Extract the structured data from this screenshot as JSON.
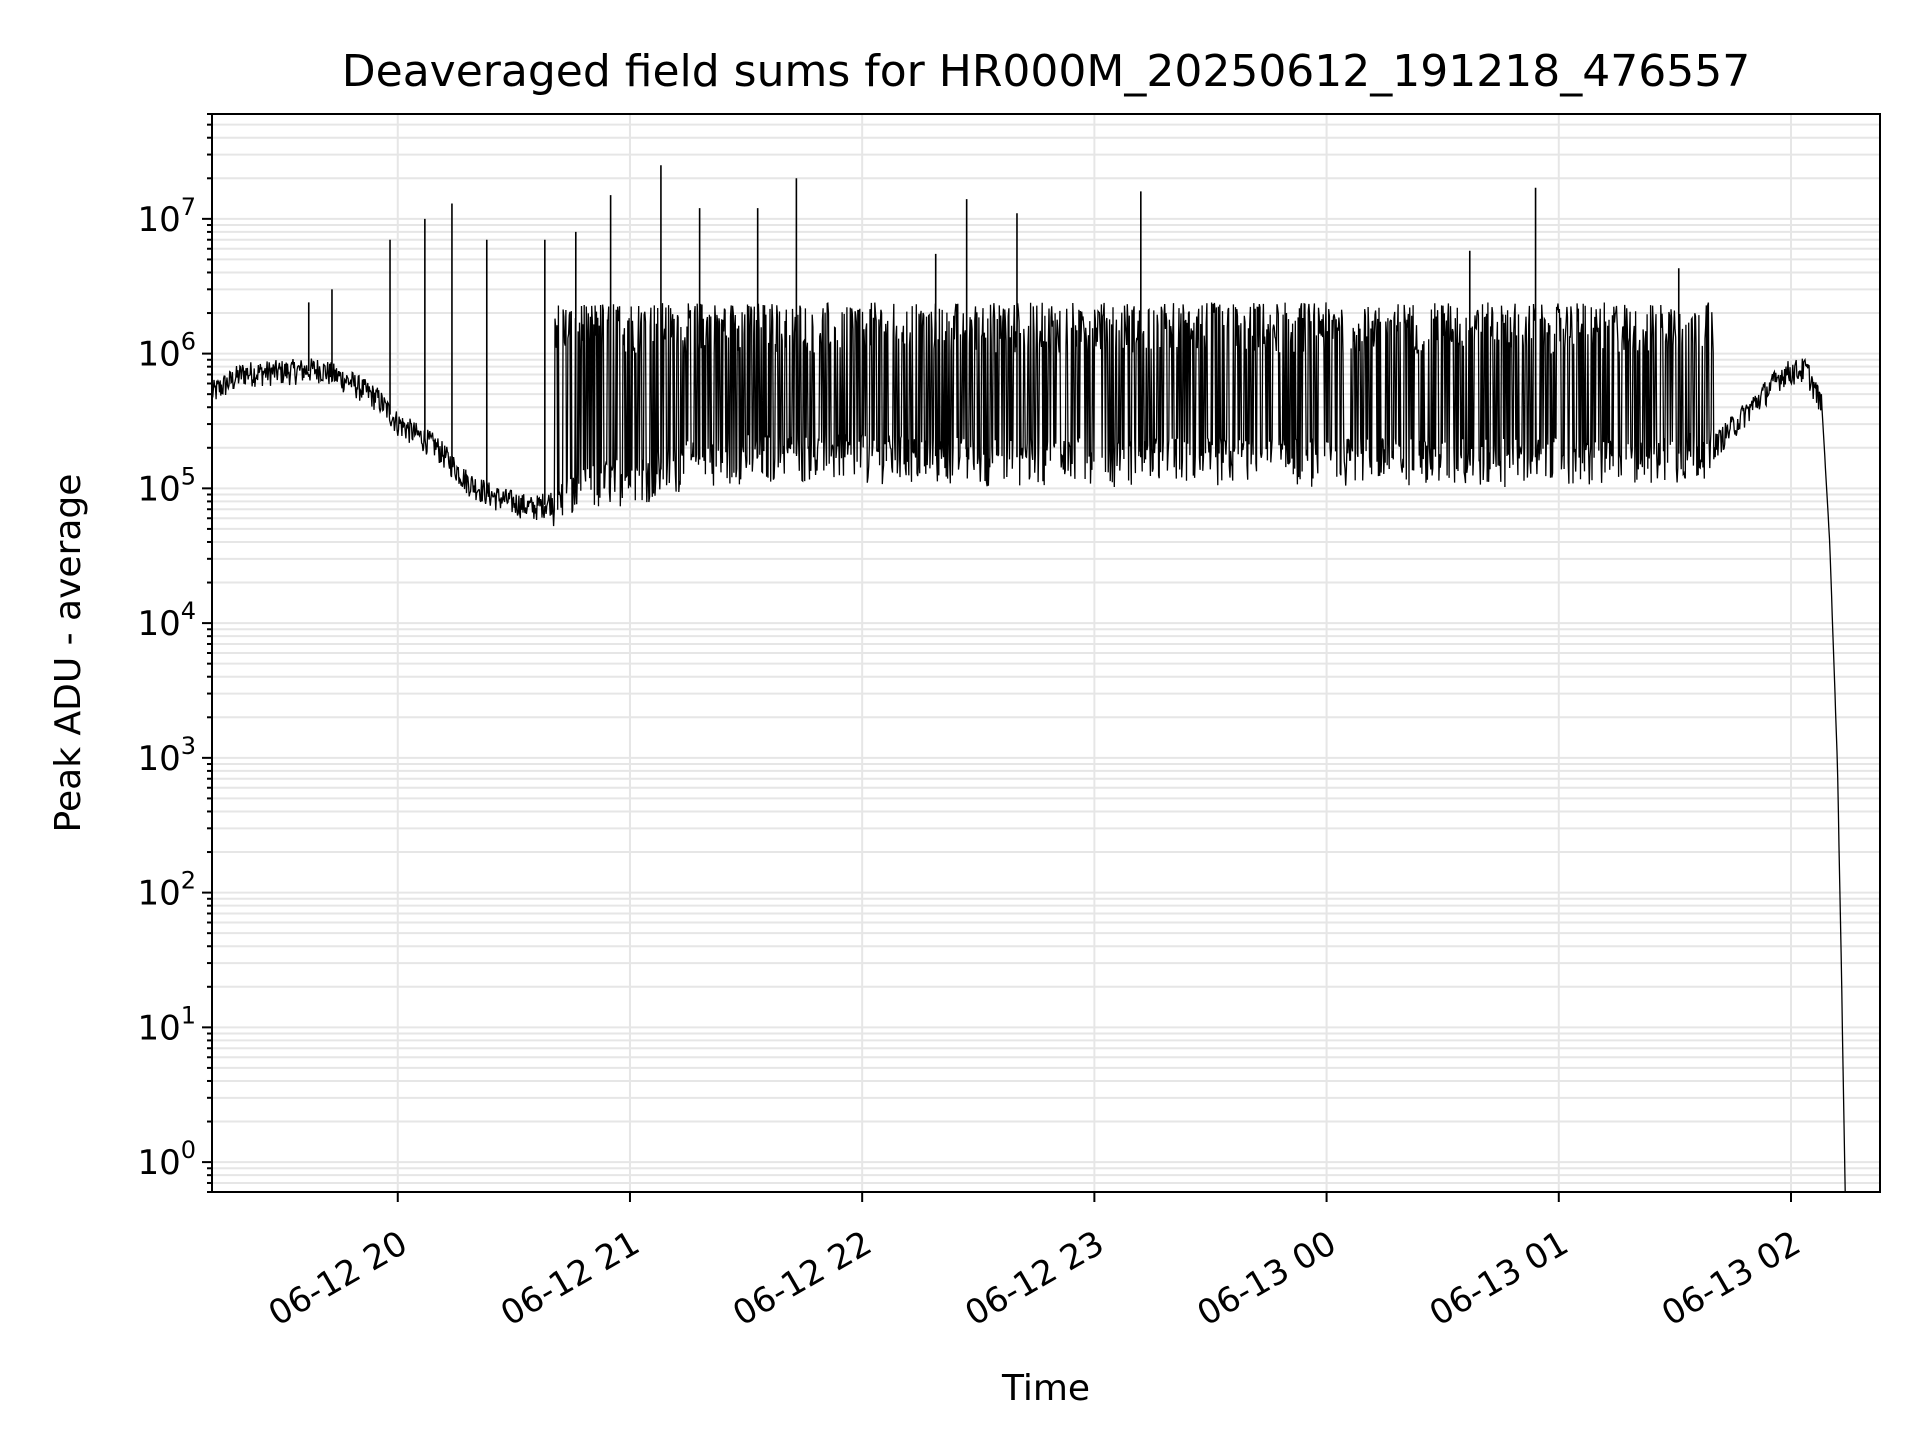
{
  "chart_data": {
    "type": "line",
    "title": "Deaveraged field sums for HR000M_20250612_191218_476557",
    "xlabel": "Time",
    "ylabel": "Peak ADU - average",
    "yscale": "log",
    "ylim": [
      0.6,
      60000000
    ],
    "xlim": [
      "2025-06-12 19:12",
      "2025-06-13 02:23"
    ],
    "grid": true,
    "line_color": "#000000",
    "grid_color": "#e6e6e6",
    "x_ticks": [
      {
        "t": "2025-06-12 20:00",
        "label": "06-12 20"
      },
      {
        "t": "2025-06-12 21:00",
        "label": "06-12 21"
      },
      {
        "t": "2025-06-12 22:00",
        "label": "06-12 22"
      },
      {
        "t": "2025-06-12 23:00",
        "label": "06-12 23"
      },
      {
        "t": "2025-06-13 00:00",
        "label": "06-13 00"
      },
      {
        "t": "2025-06-13 01:00",
        "label": "06-13 01"
      },
      {
        "t": "2025-06-13 02:00",
        "label": "06-13 02"
      }
    ],
    "y_ticks": [
      {
        "v": 1,
        "base": "10",
        "exp": "0"
      },
      {
        "v": 10,
        "base": "10",
        "exp": "1"
      },
      {
        "v": 100,
        "base": "10",
        "exp": "2"
      },
      {
        "v": 1000,
        "base": "10",
        "exp": "3"
      },
      {
        "v": 10000,
        "base": "10",
        "exp": "4"
      },
      {
        "v": 100000,
        "base": "10",
        "exp": "5"
      },
      {
        "v": 1000000,
        "base": "10",
        "exp": "6"
      },
      {
        "v": 10000000,
        "base": "10",
        "exp": "7"
      }
    ],
    "series": [
      {
        "x": [
          "2025-06-12 19:12",
          "2025-06-12 19:20",
          "2025-06-12 19:30",
          "2025-06-12 19:40",
          "2025-06-12 19:48",
          "2025-06-12 19:55",
          "2025-06-12 20:00",
          "2025-06-12 20:10",
          "2025-06-12 20:18",
          "2025-06-12 20:25",
          "2025-06-12 20:35",
          "2025-06-12 20:45",
          "2025-06-12 20:55",
          "2025-06-12 21:05",
          "2025-06-12 21:15",
          "2025-06-12 21:30",
          "2025-06-12 22:00",
          "2025-06-12 22:30",
          "2025-06-12 23:00",
          "2025-06-12 23:30",
          "2025-06-13 00:00",
          "2025-06-13 00:30",
          "2025-06-13 01:00",
          "2025-06-13 01:20",
          "2025-06-13 01:40",
          "2025-06-13 01:58",
          "2025-06-13 02:04",
          "2025-06-13 02:08",
          "2025-06-13 02:10",
          "2025-06-13 02:12",
          "2025-06-13 02:13",
          "2025-06-13 02:14"
        ],
        "y": [
          500000,
          700000,
          720000,
          750000,
          600000,
          450000,
          300000,
          200000,
          110000,
          85000,
          70000,
          90000,
          120000,
          130000,
          160000,
          180000,
          180000,
          170000,
          170000,
          170000,
          170000,
          170000,
          170000,
          160000,
          200000,
          700000,
          750000,
          400000,
          40000,
          900,
          30,
          0.6
        ]
      }
    ],
    "spikes": [
      {
        "t": "2025-06-12 19:37",
        "v": 2400000
      },
      {
        "t": "2025-06-12 19:43",
        "v": 3000000
      },
      {
        "t": "2025-06-12 19:58",
        "v": 7000000
      },
      {
        "t": "2025-06-12 20:07",
        "v": 10000000
      },
      {
        "t": "2025-06-12 20:14",
        "v": 13000000
      },
      {
        "t": "2025-06-12 20:23",
        "v": 7000000
      },
      {
        "t": "2025-06-12 20:38",
        "v": 7000000
      },
      {
        "t": "2025-06-12 20:46",
        "v": 8000000
      },
      {
        "t": "2025-06-12 20:55",
        "v": 15000000
      },
      {
        "t": "2025-06-12 21:08",
        "v": 25000000
      },
      {
        "t": "2025-06-12 21:18",
        "v": 12000000
      },
      {
        "t": "2025-06-12 21:33",
        "v": 12000000
      },
      {
        "t": "2025-06-12 21:43",
        "v": 20000000
      },
      {
        "t": "2025-06-12 22:19",
        "v": 5500000
      },
      {
        "t": "2025-06-12 22:27",
        "v": 14000000
      },
      {
        "t": "2025-06-12 22:40",
        "v": 11000000
      },
      {
        "t": "2025-06-12 23:12",
        "v": 16000000
      },
      {
        "t": "2025-06-13 00:37",
        "v": 5800000
      },
      {
        "t": "2025-06-13 00:54",
        "v": 17000000
      },
      {
        "t": "2025-06-13 01:31",
        "v": 4300000
      }
    ]
  }
}
